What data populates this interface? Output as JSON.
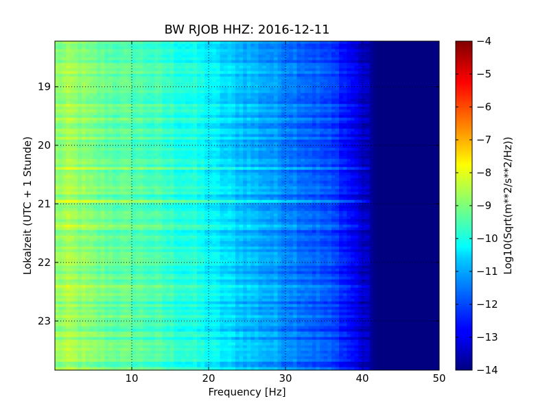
{
  "chart_data": {
    "type": "heatmap",
    "title": "BW RJOB HHZ: 2016-12-11",
    "xlabel": "Frequency [Hz]",
    "ylabel": "Lokalzeit (UTC + 1 Stunde)",
    "xlim": [
      0,
      50
    ],
    "ylim": [
      18.22,
      23.84
    ],
    "x_ticks": [
      10,
      20,
      30,
      40,
      50
    ],
    "x_tick_labels": [
      "10",
      "20",
      "30",
      "40",
      "50"
    ],
    "y_ticks": [
      19,
      20,
      21,
      22,
      23
    ],
    "y_tick_labels": [
      "19",
      "20",
      "21",
      "22",
      "23"
    ],
    "y_inverted": true,
    "grid": true,
    "colormap": "jet",
    "colorbar": {
      "label": "Log10(Sqrt(m**2/s**2/Hz))",
      "vmin": -14,
      "vmax": -4,
      "ticks": [
        -4,
        -5,
        -6,
        -7,
        -8,
        -9,
        -10,
        -11,
        -12,
        -13,
        -14
      ],
      "tick_labels": [
        "−4",
        "−5",
        "−6",
        "−7",
        "−8",
        "−9",
        "−10",
        "−11",
        "−12",
        "−13",
        "−14"
      ]
    },
    "level_profile": {
      "frequency_hz": [
        0,
        2,
        5,
        8,
        10,
        12,
        15,
        18,
        20,
        22,
        25,
        28,
        30,
        32,
        35,
        37,
        38,
        39,
        40,
        41,
        42,
        50
      ],
      "log10_amplitude": [
        -8.9,
        -8.7,
        -9.1,
        -9.3,
        -9.4,
        -9.5,
        -9.8,
        -10.0,
        -10.3,
        -10.6,
        -10.9,
        -11.2,
        -11.4,
        -11.6,
        -12.0,
        -12.3,
        -12.6,
        -12.9,
        -13.2,
        -13.7,
        -14.0,
        -14.0
      ]
    }
  }
}
